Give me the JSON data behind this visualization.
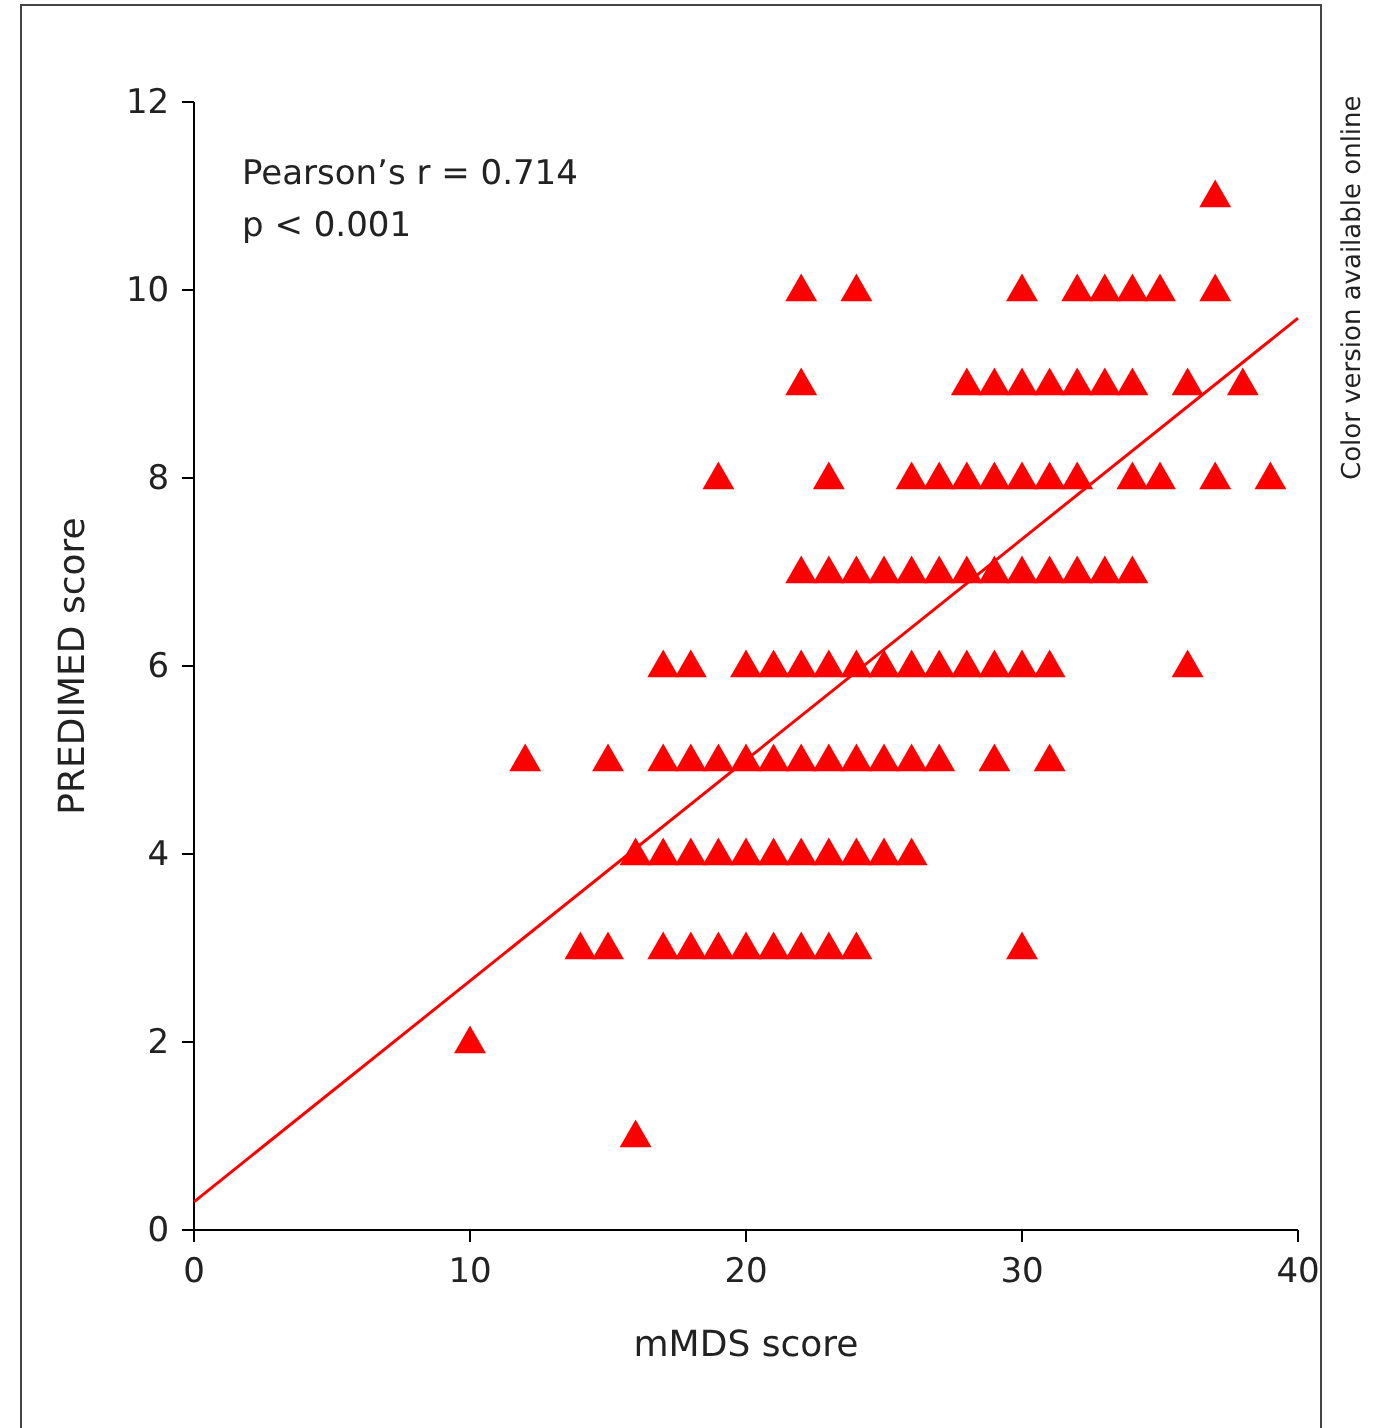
{
  "chart_data": {
    "type": "scatter",
    "xlabel": "mMDS score",
    "ylabel": "PREDIMED score",
    "xlim": [
      0,
      40
    ],
    "ylim": [
      0,
      12
    ],
    "xticks": [
      0,
      10,
      20,
      30,
      40
    ],
    "yticks": [
      0,
      2,
      4,
      6,
      8,
      10,
      12
    ],
    "grid": false,
    "marker": "triangle",
    "annotations": [
      "Pearson’s r = 0.714",
      "p < 0.001",
      "Color version available online"
    ],
    "series": [
      {
        "color": "#ff0000",
        "x": [
          37,
          22,
          24,
          30,
          32,
          33,
          34,
          35,
          37,
          22,
          28,
          29,
          30,
          31,
          32,
          33,
          34,
          36,
          38,
          19,
          23,
          26,
          27,
          28,
          29,
          30,
          31,
          32,
          34,
          35,
          37,
          39,
          22,
          23,
          24,
          25,
          26,
          27,
          28,
          29,
          30,
          31,
          32,
          33,
          34,
          17,
          18,
          20,
          21,
          22,
          23,
          24,
          25,
          26,
          27,
          28,
          29,
          30,
          31,
          36,
          12,
          15,
          17,
          18,
          19,
          20,
          21,
          22,
          23,
          24,
          25,
          26,
          27,
          29,
          31,
          16,
          17,
          18,
          19,
          20,
          21,
          22,
          23,
          24,
          25,
          26,
          14,
          15,
          17,
          18,
          19,
          20,
          21,
          22,
          23,
          24,
          30,
          10,
          16
        ],
        "values": [
          11,
          10,
          10,
          10,
          10,
          10,
          10,
          10,
          10,
          9,
          9,
          9,
          9,
          9,
          9,
          9,
          9,
          9,
          9,
          8,
          8,
          8,
          8,
          8,
          8,
          8,
          8,
          8,
          8,
          8,
          8,
          8,
          7,
          7,
          7,
          7,
          7,
          7,
          7,
          7,
          7,
          7,
          7,
          7,
          7,
          6,
          6,
          6,
          6,
          6,
          6,
          6,
          6,
          6,
          6,
          6,
          6,
          6,
          6,
          6,
          5,
          5,
          5,
          5,
          5,
          5,
          5,
          5,
          5,
          5,
          5,
          5,
          5,
          5,
          5,
          4,
          4,
          4,
          4,
          4,
          4,
          4,
          4,
          4,
          4,
          4,
          3,
          3,
          3,
          3,
          3,
          3,
          3,
          3,
          3,
          3,
          3,
          2,
          1
        ]
      },
      {
        "type": "line",
        "color": "#ff0000",
        "x": [
          0,
          40
        ],
        "values": [
          0.3,
          9.7
        ],
        "marker": "none"
      }
    ]
  }
}
